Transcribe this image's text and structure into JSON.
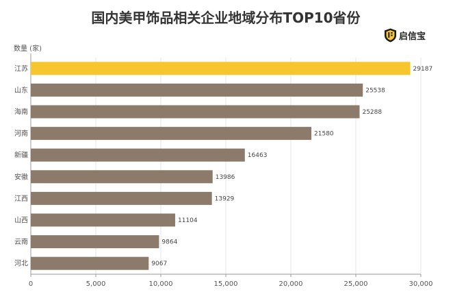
{
  "title": "国内美甲饰品相关企业地域分布TOP10省份",
  "logo": {
    "text": "启信宝",
    "icon": "shield-logo-icon"
  },
  "chart_data": {
    "type": "bar",
    "orientation": "horizontal",
    "title": "国内美甲饰品相关企业地域分布TOP10省份",
    "ylabel": "数量 (家)",
    "categories": [
      "江苏",
      "山东",
      "海南",
      "河南",
      "新疆",
      "安徽",
      "江西",
      "山西",
      "云南",
      "河北"
    ],
    "values": [
      29187,
      25538,
      25288,
      21580,
      16463,
      13986,
      13929,
      11104,
      9864,
      9067
    ],
    "xlim": [
      0,
      30000
    ],
    "xticks": [
      0,
      5000,
      10000,
      15000,
      20000,
      25000,
      30000
    ],
    "xtick_labels": [
      "0",
      "5,000",
      "10,000",
      "15,000",
      "20,000",
      "25,000",
      "30,000"
    ],
    "grid": "vertical",
    "colors": {
      "highlight": "#F7C62F",
      "bar": "#8C7B6A",
      "grid": "#E6E6E6",
      "axis": "#999999"
    }
  }
}
